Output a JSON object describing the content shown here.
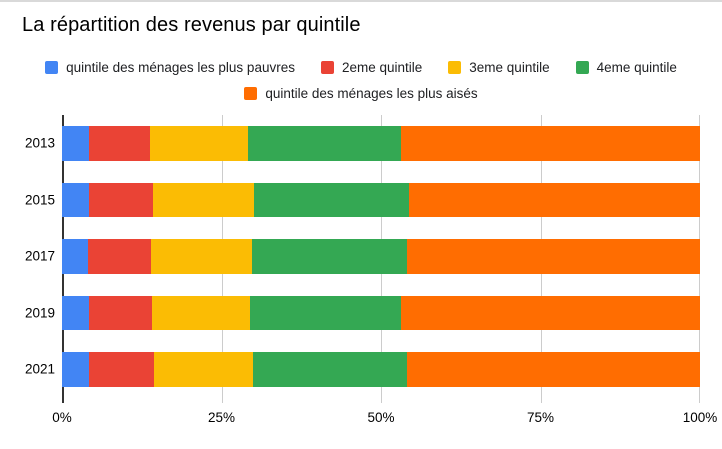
{
  "title": "La répartition des revenus par quintile",
  "legend": {
    "rows": [
      [
        0,
        1,
        2,
        3
      ],
      [
        4
      ]
    ]
  },
  "chart_data": {
    "type": "bar",
    "orientation": "horizontal",
    "stacked": true,
    "stacked_unit": "percent",
    "title": "La répartition des revenus par quintile",
    "categories": [
      "2013",
      "2015",
      "2017",
      "2019",
      "2021"
    ],
    "series": [
      {
        "name": "quintile des ménages les plus pauvres",
        "color": "#4285F4",
        "values": [
          4.3,
          4.3,
          4.0,
          4.3,
          4.3
        ]
      },
      {
        "name": "2eme quintile",
        "color": "#EA4335",
        "values": [
          9.5,
          9.9,
          10.0,
          9.8,
          10.1
        ]
      },
      {
        "name": "3eme quintile",
        "color": "#FBBC04",
        "values": [
          15.4,
          15.9,
          15.8,
          15.4,
          15.5
        ]
      },
      {
        "name": "4eme quintile",
        "color": "#34A853",
        "values": [
          24.0,
          24.3,
          24.3,
          23.6,
          24.2
        ]
      },
      {
        "name": "quintile des ménages les plus aisés",
        "color": "#FF6D01",
        "values": [
          46.8,
          45.6,
          45.9,
          46.9,
          45.9
        ]
      }
    ],
    "x_axis": {
      "range": [
        0,
        100
      ],
      "grid": true,
      "ticks": [
        {
          "value": 0,
          "label": "0%"
        },
        {
          "value": 25,
          "label": "25%"
        },
        {
          "value": 50,
          "label": "50%"
        },
        {
          "value": 75,
          "label": "75%"
        },
        {
          "value": 100,
          "label": "100%"
        }
      ]
    },
    "legend_position": "top",
    "xlabel": "",
    "ylabel": ""
  },
  "colors": {
    "axis_line": "#333333",
    "gridline": "#cccccc",
    "axis_text": "#000000",
    "legend_text": "#202124",
    "background": "#ffffff",
    "top_border": "#d9d9d9"
  }
}
